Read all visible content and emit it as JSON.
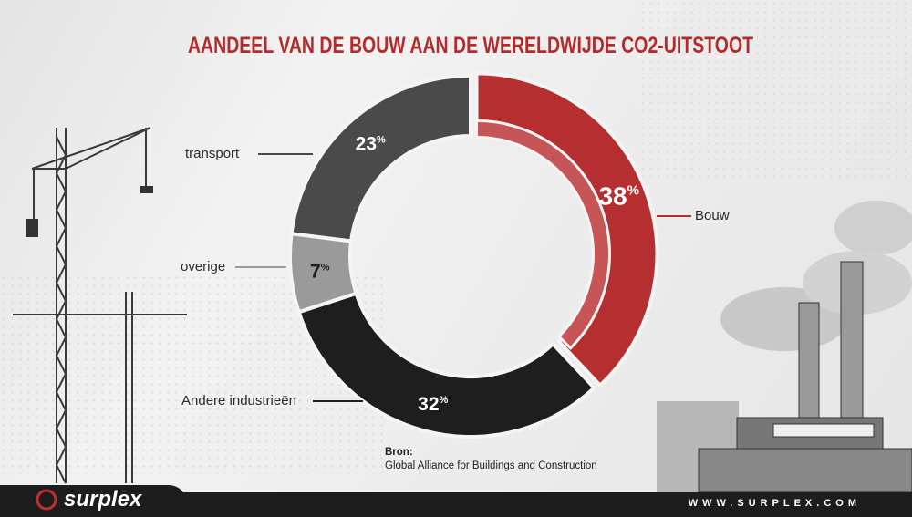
{
  "chart_data": {
    "type": "pie",
    "variant": "donut",
    "title": "AANDEEL VAN DE BOUW AAN DE WERELDWIJDE CO2-UITSTOOT",
    "slices": [
      {
        "label": "Bouw",
        "value": 38,
        "display": "38",
        "color": "#b52f30",
        "highlighted": true
      },
      {
        "label": "Andere industrieën",
        "value": 32,
        "display": "32",
        "color": "#1e1e1e"
      },
      {
        "label": "overige",
        "value": 7,
        "display": "7",
        "color": "#9a9a9a"
      },
      {
        "label": "transport",
        "value": 23,
        "display": "23",
        "color": "#4a4a4a"
      }
    ],
    "unit": "%",
    "legend": "callout-labels"
  },
  "source": {
    "label": "Bron:",
    "text": "Global Alliance for Buildings and Construction"
  },
  "footer": {
    "brand": "surplex",
    "url": "WWW.SURPLEX.COM"
  }
}
